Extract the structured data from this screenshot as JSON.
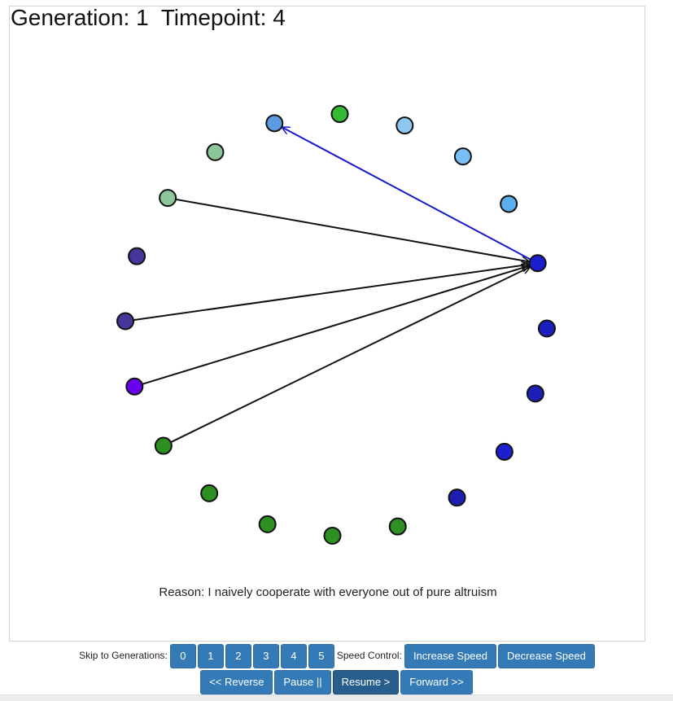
{
  "header": {
    "generation_label": "Generation: 1",
    "timepoint_label": "Timepoint: 4"
  },
  "reason": "Reason: I naively cooperate with everyone out of pure altruism",
  "controls": {
    "skip_label": "Skip to Generations:",
    "generations": [
      "0",
      "1",
      "2",
      "3",
      "4",
      "5"
    ],
    "speed_label": "Speed Control:",
    "increase_speed": "Increase Speed",
    "decrease_speed": "Decrease Speed",
    "reverse": "<< Reverse",
    "pause": "Pause ||",
    "resume": "Resume >",
    "forward": "Forward >>"
  },
  "network": {
    "node_count": 20,
    "target_node": 5,
    "node_colors": [
      "#5b9be0",
      "#33bb33",
      "#8ec8f2",
      "#78bdf5",
      "#5aafef",
      "#1c1fcf",
      "#1c1fc0",
      "#1c1fb8",
      "#1c1fcf",
      "#1c1fb0",
      "#2e8f22",
      "#2e8f22",
      "#2e8f22",
      "#2e8f22",
      "#2e8f22",
      "#6a00f0",
      "#47359a",
      "#47359a",
      "#8cc79b",
      "#8cc79b"
    ],
    "edges": [
      {
        "from": 18,
        "to": 5,
        "color": "#111111"
      },
      {
        "from": 16,
        "to": 5,
        "color": "#111111"
      },
      {
        "from": 15,
        "to": 5,
        "color": "#111111"
      },
      {
        "from": 14,
        "to": 5,
        "color": "#111111"
      },
      {
        "from": 5,
        "to": 0,
        "color": "#1a1acc"
      }
    ]
  }
}
